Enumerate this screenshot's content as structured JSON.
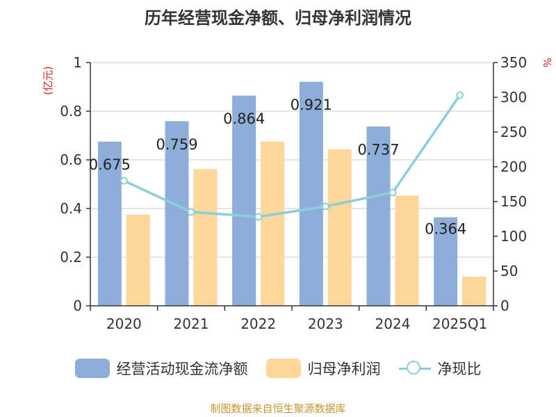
{
  "chart_data": {
    "type": "bar",
    "title": "历年经营现金净额、归母净利润情况",
    "categories": [
      "2020",
      "2021",
      "2022",
      "2023",
      "2024",
      "2025Q1"
    ],
    "series": [
      {
        "name": "经营活动现金流净额",
        "type": "bar",
        "axis": "left",
        "color": "#8eaed9",
        "values": [
          0.675,
          0.759,
          0.864,
          0.921,
          0.737,
          0.364
        ]
      },
      {
        "name": "归母净利润",
        "type": "bar",
        "axis": "left",
        "color": "#ffd699",
        "values": [
          0.375,
          0.562,
          0.675,
          0.643,
          0.453,
          0.12
        ]
      },
      {
        "name": "净现比",
        "type": "line",
        "axis": "right",
        "color": "#8ad0d8",
        "values": [
          180,
          135,
          128,
          143,
          163,
          303
        ]
      }
    ],
    "data_labels": [
      "0.675",
      "0.759",
      "0.864",
      "0.921",
      "0.737",
      "0.364"
    ],
    "y_left": {
      "label": "(亿元)",
      "ylim": [
        0,
        1
      ],
      "ticks": [
        0,
        0.2,
        0.4,
        0.6,
        0.8,
        1
      ],
      "tick_labels": [
        "0",
        "0.2",
        "0.4",
        "0.6",
        "0.8",
        "1"
      ]
    },
    "y_right": {
      "label": "%",
      "ylim": [
        0,
        350
      ],
      "ticks": [
        0,
        50,
        100,
        150,
        200,
        250,
        300,
        350
      ],
      "tick_labels": [
        "0",
        "50",
        "100",
        "150",
        "200",
        "250",
        "300",
        "350"
      ]
    },
    "grid": true,
    "legend_position": "bottom"
  },
  "source": "制图数据来自恒生聚源数据库"
}
